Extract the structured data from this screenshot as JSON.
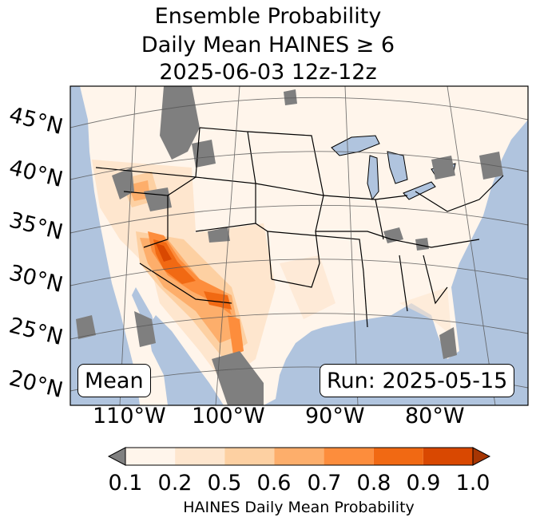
{
  "title": {
    "line1": "Ensemble Probability",
    "line2": "Daily Mean HAINES ≥ 6",
    "line3": "2025-06-03 12z-12z"
  },
  "map": {
    "latitude_labels": [
      "45°N",
      "40°N",
      "35°N",
      "30°N",
      "25°N",
      "20°N"
    ],
    "longitude_labels": [
      "110°W",
      "100°W",
      "90°W",
      "80°W"
    ],
    "ocean_color": "#b0c4de",
    "land_color": "#fff5eb",
    "missing_color": "#7f7f7f"
  },
  "badges": {
    "left": "Mean",
    "right": "Run: 2025-05-15"
  },
  "colorbar": {
    "ticks": [
      "0.1",
      "0.2",
      "0.5",
      "0.6",
      "0.7",
      "0.8",
      "0.9",
      "1.0"
    ],
    "colors": [
      "#fff5eb",
      "#fee6ce",
      "#fdd0a2",
      "#fdae6b",
      "#fd8d3c",
      "#f16913",
      "#d94801",
      "#a63603"
    ],
    "under_color": "#808080",
    "label": "HAINES Daily Mean Probability"
  }
}
